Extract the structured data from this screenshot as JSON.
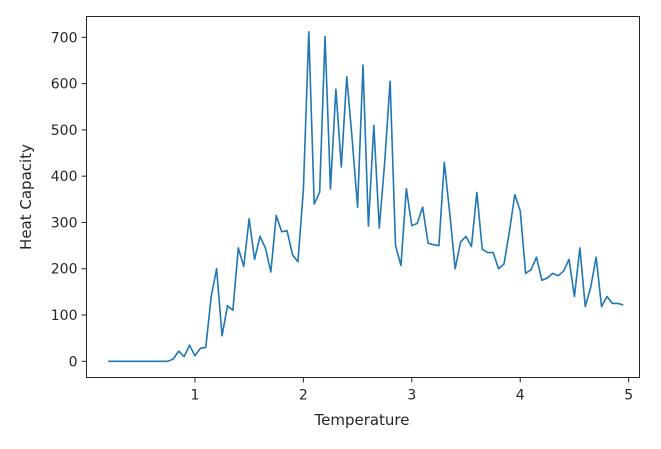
{
  "chart_data": {
    "type": "line",
    "title": "",
    "xlabel": "Temperature",
    "ylabel": "Heat Capacity",
    "xlim": [
      0.0,
      5.1
    ],
    "ylim": [
      -35,
      745
    ],
    "xticks": [
      1,
      2,
      3,
      4,
      5
    ],
    "yticks": [
      0,
      100,
      200,
      300,
      400,
      500,
      600,
      700
    ],
    "grid": false,
    "legend": "none",
    "line_color": "#1f77b4",
    "series": [
      {
        "x": [
          0.2,
          0.25,
          0.3,
          0.35,
          0.4,
          0.45,
          0.5,
          0.55,
          0.6,
          0.65,
          0.7,
          0.75,
          0.8,
          0.85,
          0.9,
          0.95,
          1.0,
          1.05,
          1.1,
          1.15,
          1.2,
          1.25,
          1.3,
          1.35,
          1.4,
          1.45,
          1.5,
          1.55,
          1.6,
          1.65,
          1.7,
          1.75,
          1.8,
          1.85,
          1.9,
          1.95,
          2.0,
          2.05,
          2.1,
          2.15,
          2.2,
          2.25,
          2.3,
          2.35,
          2.4,
          2.45,
          2.5,
          2.55,
          2.6,
          2.65,
          2.7,
          2.75,
          2.8,
          2.85,
          2.9,
          2.95,
          3.0,
          3.05,
          3.1,
          3.15,
          3.2,
          3.25,
          3.3,
          3.35,
          3.4,
          3.45,
          3.5,
          3.55,
          3.6,
          3.65,
          3.7,
          3.75,
          3.8,
          3.85,
          3.9,
          3.95,
          4.0,
          4.05,
          4.1,
          4.15,
          4.2,
          4.25,
          4.3,
          4.35,
          4.4,
          4.45,
          4.5,
          4.55,
          4.6,
          4.65,
          4.7,
          4.75,
          4.8,
          4.85,
          4.9,
          4.95
        ],
        "y": [
          0,
          0,
          0,
          0,
          0,
          0,
          0,
          0,
          0,
          0,
          0,
          0,
          5,
          22,
          10,
          35,
          12,
          28,
          30,
          140,
          200,
          55,
          120,
          110,
          245,
          205,
          308,
          220,
          270,
          245,
          193,
          315,
          280,
          282,
          230,
          215,
          370,
          712,
          340,
          365,
          702,
          372,
          588,
          420,
          615,
          480,
          333,
          640,
          292,
          510,
          288,
          430,
          605,
          250,
          207,
          373,
          293,
          298,
          333,
          255,
          252,
          250,
          430,
          320,
          200,
          258,
          270,
          248,
          365,
          242,
          235,
          235,
          200,
          210,
          280,
          360,
          325,
          190,
          198,
          225,
          175,
          180,
          190,
          185,
          195,
          220,
          140,
          245,
          118,
          160,
          225,
          118,
          140,
          125,
          125,
          122
        ]
      }
    ]
  }
}
